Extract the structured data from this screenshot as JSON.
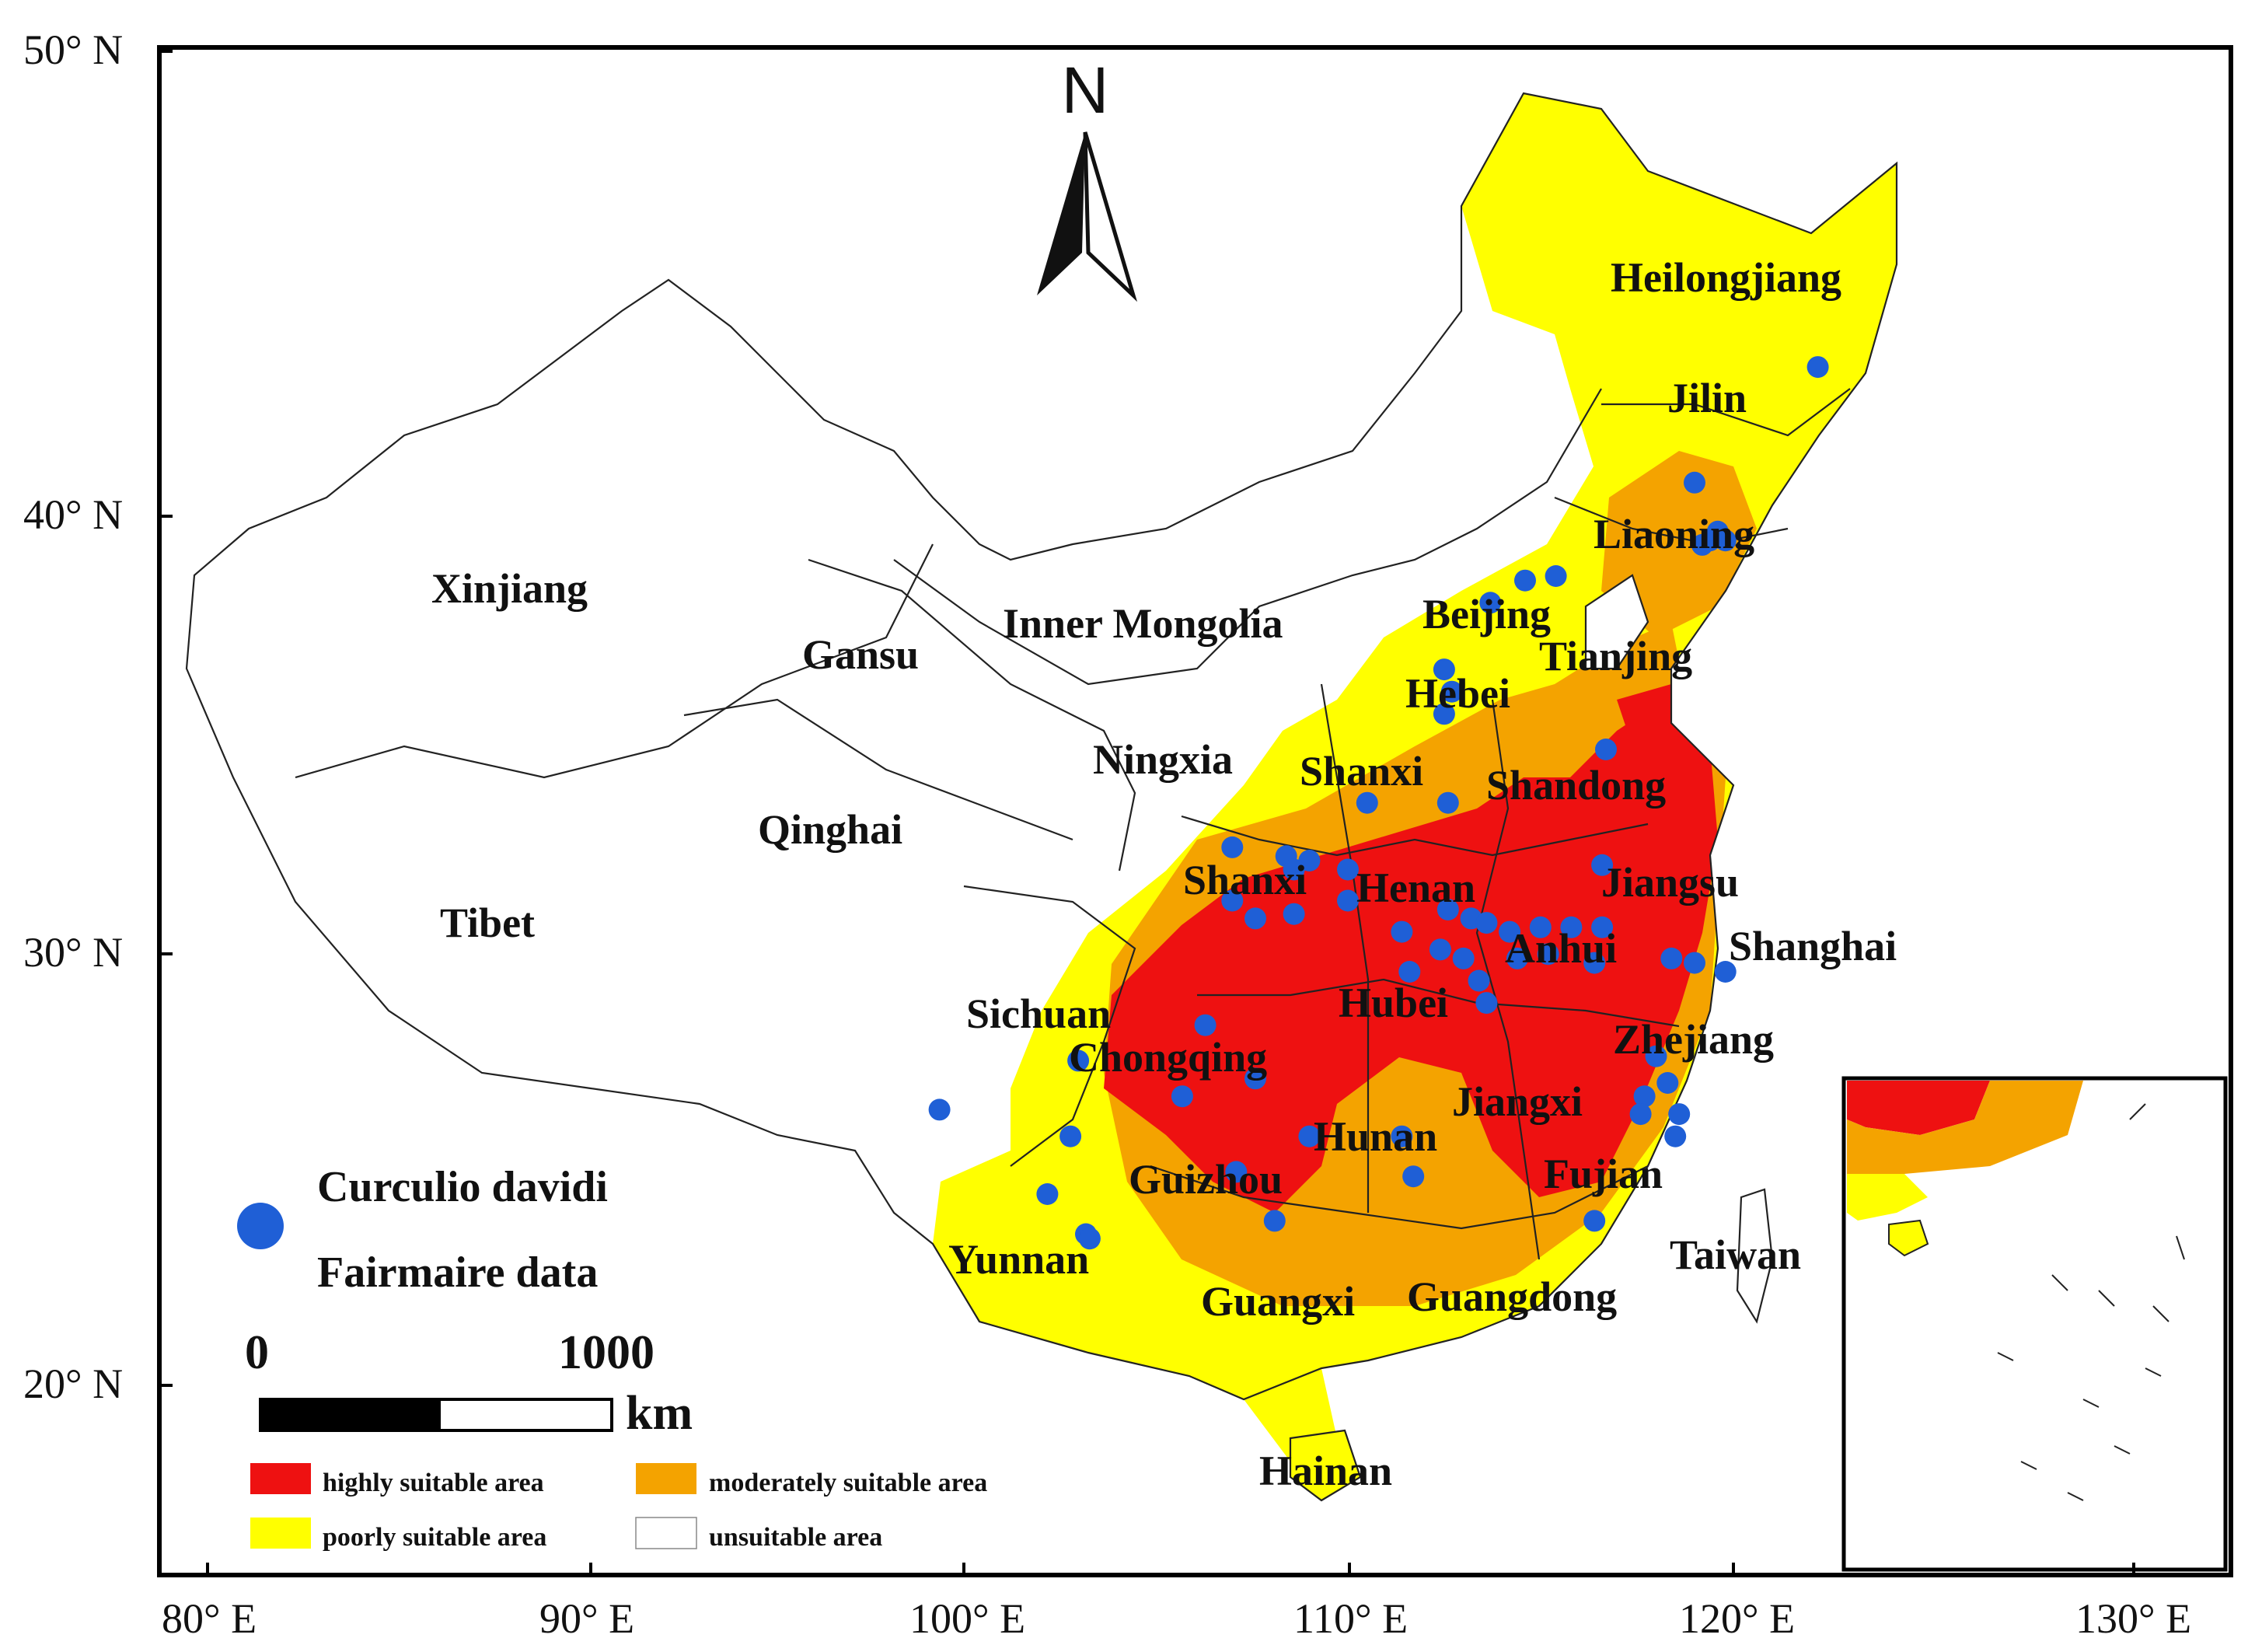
{
  "axes": {
    "y_ticks": [
      "50° N",
      "40° N",
      "30° N",
      "20° N"
    ],
    "x_ticks": [
      "80° E",
      "90° E",
      "100° E",
      "110° E",
      "120° E",
      "130° E"
    ]
  },
  "north_arrow": {
    "label": "N"
  },
  "provinces": [
    "Xinjiang",
    "Gansu",
    "Inner Mongolia",
    "Qinghai",
    "Tibet",
    "Ningxia",
    "Heilongjiang",
    "Jilin",
    "Liaoning",
    "Beijing",
    "Tianjing",
    "Hebei",
    "Shanxi",
    "Shandong",
    "Shanxi",
    "Henan",
    "Jiangsu",
    "Anhui",
    "Shanghai",
    "Hubei",
    "Sichuan",
    "Chongqing",
    "Zhejiang",
    "Jiangxi",
    "Hunan",
    "Guizhou",
    "Fujian",
    "Yunnan",
    "Taiwan",
    "Guangxi",
    "Guangdong",
    "Hainan"
  ],
  "legend": {
    "points_line1": "Curculio davidi",
    "points_line2": "Fairmaire data",
    "scale_zero": "0",
    "scale_max": "1000",
    "scale_unit": "km",
    "classes": [
      {
        "label": "highly suitable area",
        "color": "#ee1111"
      },
      {
        "label": "moderately suitable area",
        "color": "#f4a300"
      },
      {
        "label": "poorly suitable area",
        "color": "#ffff00"
      },
      {
        "label": "unsuitable area",
        "color": "#ffffff"
      }
    ]
  },
  "colors": {
    "high": "#ee1111",
    "moderate": "#f4a300",
    "poor": "#ffff00",
    "occurrence": "#1f5fd6",
    "border": "#222222"
  },
  "occurrences": [
    [
      121.8,
      42.9
    ],
    [
      118.6,
      40.3
    ],
    [
      119.2,
      39.2
    ],
    [
      119.4,
      39.0
    ],
    [
      119.0,
      39.0
    ],
    [
      118.8,
      38.9
    ],
    [
      115.0,
      38.2
    ],
    [
      114.2,
      38.1
    ],
    [
      113.3,
      37.6
    ],
    [
      112.1,
      36.1
    ],
    [
      112.3,
      35.6
    ],
    [
      112.1,
      35.1
    ],
    [
      116.3,
      34.3
    ],
    [
      112.2,
      33.1
    ],
    [
      110.1,
      33.1
    ],
    [
      106.6,
      32.1
    ],
    [
      108.0,
      31.9
    ],
    [
      108.6,
      31.8
    ],
    [
      108.2,
      31.6
    ],
    [
      109.6,
      31.6
    ],
    [
      116.2,
      31.7
    ],
    [
      106.6,
      30.9
    ],
    [
      107.2,
      30.5
    ],
    [
      108.2,
      30.6
    ],
    [
      109.6,
      30.9
    ],
    [
      111.0,
      30.2
    ],
    [
      112.2,
      30.7
    ],
    [
      112.8,
      30.5
    ],
    [
      113.2,
      30.4
    ],
    [
      113.8,
      30.2
    ],
    [
      114.6,
      30.3
    ],
    [
      115.4,
      30.3
    ],
    [
      116.2,
      30.3
    ],
    [
      112.0,
      29.8
    ],
    [
      112.6,
      29.6
    ],
    [
      113.0,
      29.1
    ],
    [
      113.2,
      28.6
    ],
    [
      111.2,
      29.3
    ],
    [
      114.0,
      29.6
    ],
    [
      114.8,
      29.7
    ],
    [
      116.0,
      29.5
    ],
    [
      118.0,
      29.6
    ],
    [
      118.6,
      29.5
    ],
    [
      119.4,
      29.3
    ],
    [
      105.9,
      28.1
    ],
    [
      102.6,
      27.3
    ],
    [
      117.6,
      27.4
    ],
    [
      117.9,
      26.8
    ],
    [
      117.3,
      26.5
    ],
    [
      117.2,
      26.1
    ],
    [
      118.2,
      26.1
    ],
    [
      105.3,
      26.5
    ],
    [
      107.2,
      26.9
    ],
    [
      99.0,
      26.2
    ],
    [
      102.4,
      25.6
    ],
    [
      108.6,
      25.6
    ],
    [
      111.0,
      25.6
    ],
    [
      118.1,
      25.6
    ],
    [
      106.7,
      24.8
    ],
    [
      111.3,
      24.7
    ],
    [
      101.8,
      24.3
    ],
    [
      102.8,
      23.4
    ],
    [
      102.9,
      23.3
    ],
    [
      107.7,
      23.7
    ],
    [
      116.0,
      23.7
    ]
  ]
}
